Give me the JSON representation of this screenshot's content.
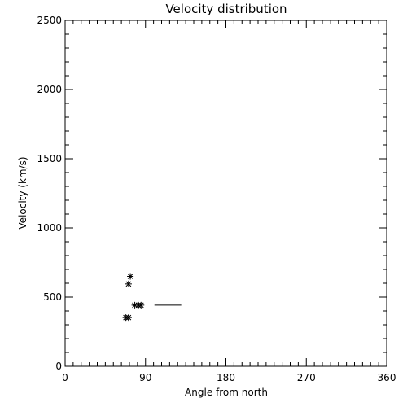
{
  "chart_data": {
    "type": "scatter",
    "title": "Velocity distribution",
    "xlabel": "Angle from north",
    "ylabel": "Velocity (km/s)",
    "xlim": [
      0,
      360
    ],
    "ylim": [
      0,
      2500
    ],
    "x_ticks": [
      0,
      90,
      180,
      270,
      360
    ],
    "y_ticks": [
      0,
      500,
      1000,
      1500,
      2000,
      2500
    ],
    "x_minor_step": 9,
    "y_minor_step": 100,
    "grid": false,
    "marker": "asterisk",
    "points": [
      {
        "x": 73,
        "y": 650
      },
      {
        "x": 71,
        "y": 595
      },
      {
        "x": 78,
        "y": 442
      },
      {
        "x": 82,
        "y": 442
      },
      {
        "x": 85,
        "y": 442
      },
      {
        "x": 68,
        "y": 352
      },
      {
        "x": 71,
        "y": 352
      }
    ],
    "segments": [
      {
        "x1": 100,
        "x2": 130,
        "y": 442
      }
    ]
  }
}
